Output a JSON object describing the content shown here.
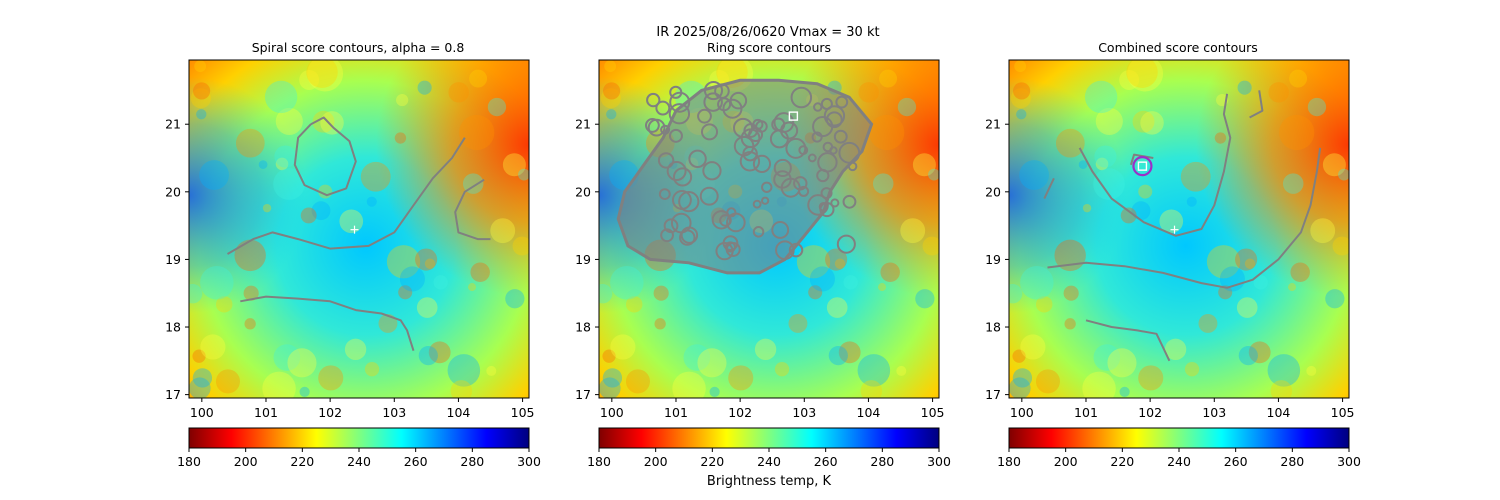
{
  "suptitle": "IR  2025/08/26/0620    Vmax = 30 kt",
  "colorbar_label": "Brightness temp, K",
  "colormap": [
    "#7f0000",
    "#ff0000",
    "#ff8000",
    "#ffff00",
    "#7fff7f",
    "#00ffff",
    "#0080ff",
    "#0000ff",
    "#00007f"
  ],
  "contour_color": "#808080",
  "chart_data": [
    {
      "type": "heatmap",
      "title": "Spiral score contours, alpha =  0.8",
      "xlabel": "",
      "ylabel": "",
      "xlim": [
        99.8,
        105.1
      ],
      "ylim": [
        16.95,
        21.95
      ],
      "xticks": [
        100,
        101,
        102,
        103,
        104,
        105
      ],
      "yticks": [
        17,
        18,
        19,
        20,
        21
      ],
      "colorbar": {
        "min": 180,
        "max": 300,
        "ticks": [
          180,
          200,
          220,
          240,
          260,
          280,
          300
        ],
        "label": ""
      },
      "markers": [
        {
          "symbol": "plus",
          "x": 102.38,
          "y": 19.44,
          "color": "#ffffff"
        }
      ],
      "contours": [
        [
          [
            101.7,
            21.0
          ],
          [
            101.9,
            21.1
          ],
          [
            102.05,
            20.95
          ],
          [
            102.3,
            20.75
          ],
          [
            102.4,
            20.45
          ],
          [
            102.25,
            20.05
          ],
          [
            101.95,
            19.95
          ],
          [
            101.6,
            20.1
          ],
          [
            101.45,
            20.4
          ],
          [
            101.5,
            20.8
          ],
          [
            101.7,
            21.0
          ]
        ],
        [
          [
            100.4,
            19.08
          ],
          [
            100.8,
            19.3
          ],
          [
            101.1,
            19.4
          ],
          [
            101.5,
            19.3
          ],
          [
            102.0,
            19.16
          ],
          [
            102.6,
            19.2
          ],
          [
            103.0,
            19.4
          ],
          [
            103.3,
            19.8
          ],
          [
            103.6,
            20.2
          ],
          [
            103.9,
            20.5
          ],
          [
            104.1,
            20.8
          ]
        ],
        [
          [
            104.4,
            20.18
          ],
          [
            104.1,
            20.0
          ],
          [
            103.95,
            19.7
          ],
          [
            104.0,
            19.4
          ],
          [
            104.3,
            19.3
          ],
          [
            104.5,
            19.3
          ]
        ],
        [
          [
            100.6,
            18.38
          ],
          [
            101.0,
            18.45
          ],
          [
            101.5,
            18.42
          ],
          [
            102.0,
            18.38
          ],
          [
            102.4,
            18.25
          ],
          [
            102.8,
            18.2
          ],
          [
            103.1,
            18.1
          ],
          [
            103.2,
            17.95
          ],
          [
            103.3,
            17.65
          ]
        ]
      ]
    },
    {
      "type": "heatmap",
      "title": "Ring score contours",
      "xlabel": "",
      "ylabel": "",
      "xlim": [
        99.8,
        105.1
      ],
      "ylim": [
        16.95,
        21.95
      ],
      "xticks": [
        100,
        101,
        102,
        103,
        104,
        105
      ],
      "yticks": [
        17,
        18,
        19,
        20,
        21
      ],
      "colorbar": {
        "min": 180,
        "max": 300,
        "ticks": [
          180,
          200,
          220,
          240,
          260,
          280,
          300
        ],
        "label": "Brightness temp, K"
      },
      "markers": [
        {
          "symbol": "square",
          "x": 102.83,
          "y": 21.12,
          "color": "#ffffff"
        }
      ],
      "contours": [
        [
          [
            101.0,
            21.2
          ],
          [
            101.4,
            21.5
          ],
          [
            102.0,
            21.65
          ],
          [
            102.6,
            21.65
          ],
          [
            103.2,
            21.6
          ],
          [
            103.7,
            21.4
          ],
          [
            104.05,
            21.0
          ],
          [
            103.9,
            20.6
          ],
          [
            103.6,
            20.3
          ],
          [
            103.4,
            20.0
          ],
          [
            103.3,
            19.7
          ],
          [
            103.0,
            19.35
          ],
          [
            102.7,
            19.0
          ],
          [
            102.3,
            18.8
          ],
          [
            101.8,
            18.8
          ],
          [
            101.2,
            18.95
          ],
          [
            100.6,
            19.0
          ],
          [
            100.25,
            19.2
          ],
          [
            100.1,
            19.6
          ],
          [
            100.2,
            20.0
          ],
          [
            100.5,
            20.4
          ],
          [
            100.8,
            20.8
          ],
          [
            101.0,
            21.2
          ]
        ]
      ]
    },
    {
      "type": "heatmap",
      "title": "Combined score contours",
      "xlabel": "",
      "ylabel": "",
      "xlim": [
        99.8,
        105.1
      ],
      "ylim": [
        16.95,
        21.95
      ],
      "xticks": [
        100,
        101,
        102,
        103,
        104,
        105
      ],
      "yticks": [
        17,
        18,
        19,
        20,
        21
      ],
      "colorbar": {
        "min": 180,
        "max": 300,
        "ticks": [
          180,
          200,
          220,
          240,
          260,
          280,
          300
        ],
        "label": ""
      },
      "markers": [
        {
          "symbol": "plus",
          "x": 102.38,
          "y": 19.44,
          "color": "#ffffff"
        },
        {
          "symbol": "circle",
          "x": 101.88,
          "y": 20.38,
          "color": "#9b30c8"
        },
        {
          "symbol": "square",
          "x": 101.88,
          "y": 20.38,
          "color": "#ffffff"
        }
      ],
      "contours": [
        [
          [
            100.4,
            18.88
          ],
          [
            101.0,
            18.95
          ],
          [
            101.6,
            18.9
          ],
          [
            102.2,
            18.8
          ],
          [
            102.8,
            18.65
          ],
          [
            103.2,
            18.58
          ],
          [
            103.6,
            18.7
          ],
          [
            104.0,
            19.0
          ],
          [
            104.35,
            19.4
          ],
          [
            104.5,
            19.8
          ],
          [
            104.6,
            20.3
          ],
          [
            104.65,
            20.65
          ]
        ],
        [
          [
            100.9,
            20.65
          ],
          [
            101.1,
            20.3
          ],
          [
            101.4,
            19.9
          ],
          [
            101.9,
            19.55
          ],
          [
            102.4,
            19.35
          ],
          [
            102.8,
            19.45
          ],
          [
            103.0,
            19.8
          ],
          [
            103.15,
            20.3
          ],
          [
            103.25,
            20.8
          ],
          [
            103.15,
            21.15
          ],
          [
            103.2,
            21.45
          ]
        ],
        [
          [
            101.0,
            18.1
          ],
          [
            101.4,
            18.0
          ],
          [
            101.8,
            17.95
          ],
          [
            102.1,
            17.9
          ],
          [
            102.2,
            17.7
          ],
          [
            102.3,
            17.5
          ]
        ],
        [
          [
            100.5,
            20.2
          ],
          [
            100.35,
            19.9
          ]
        ],
        [
          [
            101.7,
            20.4
          ],
          [
            101.75,
            20.55
          ],
          [
            102.05,
            20.5
          ]
        ],
        [
          [
            103.55,
            21.1
          ],
          [
            103.75,
            21.2
          ],
          [
            103.7,
            21.5
          ]
        ]
      ]
    }
  ]
}
